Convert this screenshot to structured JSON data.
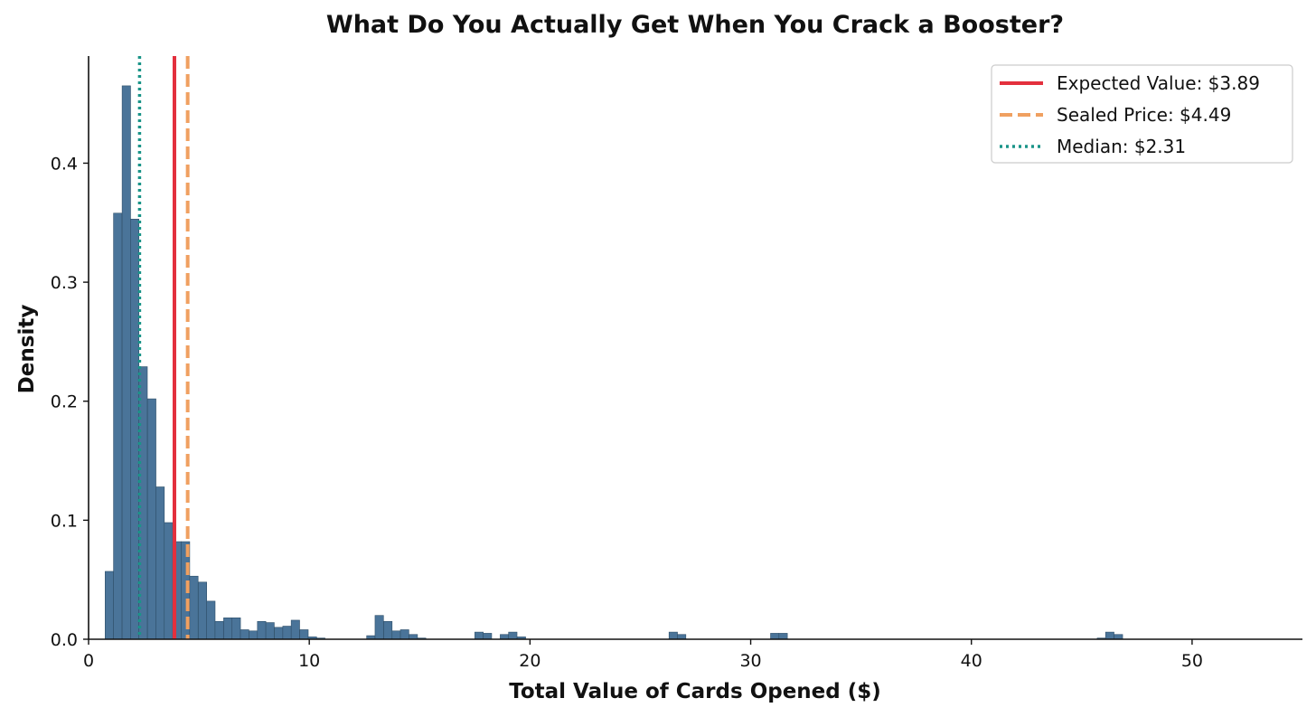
{
  "chart_data": {
    "type": "bar",
    "title": "What Do You Actually Get When You Crack a Booster?",
    "xlabel": "Total Value of Cards Opened ($)",
    "ylabel": "Density",
    "xlim": [
      0,
      55
    ],
    "ylim": [
      0,
      0.49
    ],
    "xticks": [
      0,
      10,
      20,
      30,
      40,
      50
    ],
    "yticks": [
      0.0,
      0.1,
      0.2,
      0.3,
      0.4
    ],
    "bin_width": 0.5,
    "bins": [
      {
        "x0": 0.75,
        "v": 0.057
      },
      {
        "x0": 1.13,
        "v": 0.358
      },
      {
        "x0": 1.52,
        "v": 0.465
      },
      {
        "x0": 1.9,
        "v": 0.353
      },
      {
        "x0": 2.28,
        "v": 0.229
      },
      {
        "x0": 2.67,
        "v": 0.202
      },
      {
        "x0": 3.05,
        "v": 0.128
      },
      {
        "x0": 3.43,
        "v": 0.098
      },
      {
        "x0": 3.82,
        "v": 0.082
      },
      {
        "x0": 4.2,
        "v": 0.082
      },
      {
        "x0": 4.58,
        "v": 0.053
      },
      {
        "x0": 4.97,
        "v": 0.048
      },
      {
        "x0": 5.35,
        "v": 0.032
      },
      {
        "x0": 5.73,
        "v": 0.015
      },
      {
        "x0": 6.12,
        "v": 0.018
      },
      {
        "x0": 6.5,
        "v": 0.018
      },
      {
        "x0": 6.88,
        "v": 0.008
      },
      {
        "x0": 7.27,
        "v": 0.007
      },
      {
        "x0": 7.65,
        "v": 0.015
      },
      {
        "x0": 8.03,
        "v": 0.014
      },
      {
        "x0": 8.42,
        "v": 0.01
      },
      {
        "x0": 8.8,
        "v": 0.011
      },
      {
        "x0": 9.18,
        "v": 0.016
      },
      {
        "x0": 9.57,
        "v": 0.008
      },
      {
        "x0": 9.95,
        "v": 0.002
      },
      {
        "x0": 10.33,
        "v": 0.001
      },
      {
        "x0": 12.6,
        "v": 0.003
      },
      {
        "x0": 12.98,
        "v": 0.02
      },
      {
        "x0": 13.37,
        "v": 0.015
      },
      {
        "x0": 13.75,
        "v": 0.007
      },
      {
        "x0": 14.13,
        "v": 0.008
      },
      {
        "x0": 14.52,
        "v": 0.004
      },
      {
        "x0": 14.9,
        "v": 0.001
      },
      {
        "x0": 17.5,
        "v": 0.006
      },
      {
        "x0": 17.88,
        "v": 0.005
      },
      {
        "x0": 18.65,
        "v": 0.004
      },
      {
        "x0": 19.03,
        "v": 0.006
      },
      {
        "x0": 19.42,
        "v": 0.002
      },
      {
        "x0": 26.3,
        "v": 0.006
      },
      {
        "x0": 26.68,
        "v": 0.004
      },
      {
        "x0": 30.9,
        "v": 0.005
      },
      {
        "x0": 31.28,
        "v": 0.005
      },
      {
        "x0": 45.7,
        "v": 0.001
      },
      {
        "x0": 46.08,
        "v": 0.006
      },
      {
        "x0": 46.47,
        "v": 0.004
      }
    ],
    "bar_color": "#4a7499",
    "vlines": [
      {
        "label": "Expected Value: $3.89",
        "x": 3.89,
        "color": "#e3303d",
        "style": "solid"
      },
      {
        "label": "Sealed Price: $4.49",
        "x": 4.49,
        "color": "#f0a060",
        "style": "dashed"
      },
      {
        "label": "Median: $2.31",
        "x": 2.31,
        "color": "#1a9488",
        "style": "dotted"
      }
    ],
    "legend_position": "top-right",
    "grid": false
  }
}
